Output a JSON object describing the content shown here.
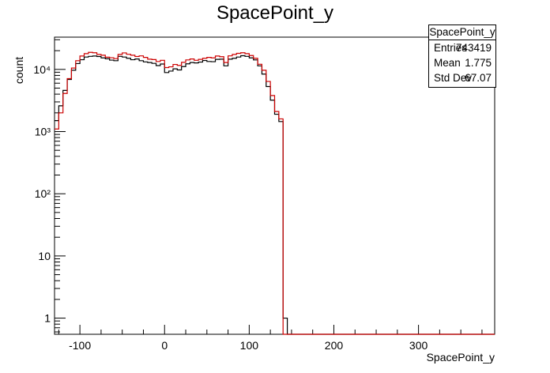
{
  "chart_data": {
    "type": "histogram",
    "title": "SpacePoint_y",
    "xlabel": "SpacePoint_y",
    "ylabel": "count",
    "xlim": [
      -130,
      390
    ],
    "ylim": [
      0.55,
      33000
    ],
    "yscale": "log",
    "x_ticks": [
      -100,
      0,
      100,
      200,
      300
    ],
    "y_ticks": [
      {
        "value": 1,
        "label": "1"
      },
      {
        "value": 10,
        "label": "10"
      },
      {
        "value": 100,
        "label": "10²"
      },
      {
        "value": 1000,
        "label": "10³"
      },
      {
        "value": 10000,
        "label": "10⁴"
      }
    ],
    "grid": false,
    "bin_width": 5,
    "bin_start": -130,
    "series": [
      {
        "color": "#000000",
        "values": [
          1500,
          2600,
          4600,
          6900,
          9700,
          12400,
          14300,
          15800,
          16200,
          16400,
          16100,
          15300,
          14800,
          14100,
          13800,
          16200,
          15800,
          15100,
          14300,
          14700,
          13800,
          13200,
          12900,
          12500,
          11500,
          12200,
          8900,
          9400,
          10200,
          9800,
          11100,
          12300,
          12900,
          12700,
          13100,
          13900,
          13400,
          13300,
          14500,
          14600,
          11400,
          14600,
          15100,
          15800,
          16600,
          16200,
          15300,
          14200,
          11400,
          8400,
          5300,
          3200,
          1900,
          1450,
          1,
          0,
          0,
          0,
          0,
          0,
          0,
          0,
          0,
          0,
          0,
          0,
          0,
          0,
          0,
          0,
          0,
          0,
          0,
          0,
          0,
          0,
          0,
          0,
          0,
          0,
          0,
          0,
          0,
          0,
          0,
          0,
          0,
          0,
          0,
          0,
          0,
          0,
          0,
          0,
          0,
          0,
          0,
          0,
          0,
          0,
          0,
          0,
          0,
          0
        ]
      },
      {
        "color": "#cc0000",
        "values": [
          1100,
          2000,
          4100,
          7100,
          10500,
          13800,
          16400,
          17900,
          18800,
          18500,
          17400,
          16900,
          15700,
          15400,
          14900,
          17400,
          18400,
          17500,
          16900,
          16100,
          16500,
          15600,
          14600,
          14400,
          13400,
          14000,
          10700,
          11000,
          12000,
          11600,
          13000,
          14200,
          14700,
          14000,
          14500,
          15100,
          15600,
          15300,
          16400,
          16000,
          12900,
          16500,
          17400,
          18100,
          18500,
          17900,
          16700,
          15100,
          12100,
          9700,
          6400,
          3800,
          2100,
          1600,
          0,
          0,
          0,
          0,
          0,
          0,
          0,
          0,
          0,
          0,
          0,
          0,
          0,
          0,
          0,
          0,
          0,
          0,
          0,
          0,
          0,
          0,
          0,
          0,
          0,
          0,
          0,
          0,
          0,
          0,
          0,
          0,
          0,
          0,
          0,
          0,
          0,
          0,
          0,
          0,
          0,
          0,
          0,
          0,
          0,
          0,
          0,
          0,
          0,
          0
        ]
      }
    ],
    "stats": {
      "name": "SpacePoint_y",
      "rows": [
        {
          "key": "Entries",
          "value": "743419"
        },
        {
          "key": "Mean",
          "value": "1.775"
        },
        {
          "key": "Std Dev",
          "value": "67.07"
        }
      ]
    }
  }
}
